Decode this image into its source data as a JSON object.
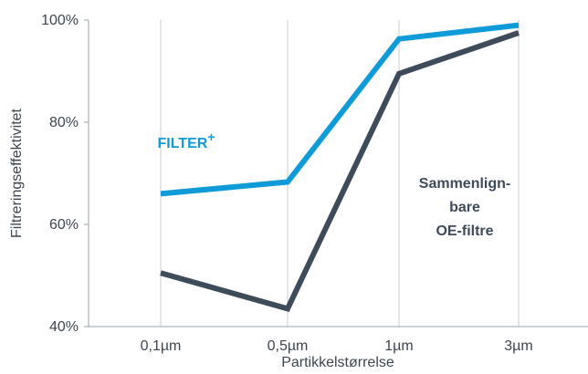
{
  "chart_data": {
    "type": "line",
    "categories": [
      "0,1µm",
      "0,5µm",
      "1µm",
      "3µm"
    ],
    "xlabel": "Partikkelstørrelse",
    "ylabel": "Filtreringseffektivitet",
    "y_tick_labels": [
      "40%",
      "60%",
      "80%",
      "100%"
    ],
    "ylim": [
      40,
      100
    ],
    "grid": "vertical",
    "series": [
      {
        "name": "FILTER",
        "name_superscript": "+",
        "color": "#0f9bd7",
        "values": [
          66,
          68.3,
          96.3,
          99
        ]
      },
      {
        "name_lines": [
          "Sammenlign-",
          "bare",
          "OE-filtre"
        ],
        "color": "#3d4b5a",
        "values": [
          50.5,
          43.5,
          89.5,
          97.5
        ]
      }
    ]
  }
}
